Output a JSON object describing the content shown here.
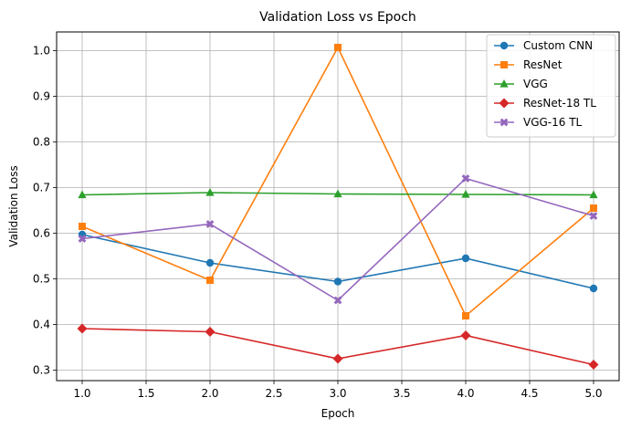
{
  "chart_data": {
    "type": "line",
    "title": "Validation Loss vs Epoch",
    "xlabel": "Epoch",
    "ylabel": "Validation Loss",
    "x": [
      1,
      2,
      3,
      4,
      5
    ],
    "xlim": [
      0.8,
      5.2
    ],
    "ylim": [
      0.277,
      1.041
    ],
    "xticks": [
      1.0,
      1.5,
      2.0,
      2.5,
      3.0,
      3.5,
      4.0,
      4.5,
      5.0
    ],
    "xtick_labels": [
      "1.0",
      "1.5",
      "2.0",
      "2.5",
      "3.0",
      "3.5",
      "4.0",
      "4.5",
      "5.0"
    ],
    "yticks": [
      0.3,
      0.4,
      0.5,
      0.6,
      0.7,
      0.8,
      0.9,
      1.0
    ],
    "ytick_labels": [
      "0.3",
      "0.4",
      "0.5",
      "0.6",
      "0.7",
      "0.8",
      "0.9",
      "1.0"
    ],
    "grid": true,
    "legend_position": "top-right",
    "series": [
      {
        "name": "Custom CNN",
        "color": "#1f77b4",
        "marker": "circle",
        "values": [
          0.597,
          0.535,
          0.494,
          0.545,
          0.479
        ]
      },
      {
        "name": "ResNet",
        "color": "#ff7f0e",
        "marker": "square",
        "values": [
          0.615,
          0.497,
          1.007,
          0.419,
          0.655
        ]
      },
      {
        "name": "VGG",
        "color": "#2ca02c",
        "marker": "triangle",
        "values": [
          0.684,
          0.689,
          0.686,
          0.685,
          0.684
        ]
      },
      {
        "name": "ResNet-18 TL",
        "color": "#d62728",
        "marker": "diamond",
        "values": [
          0.391,
          0.384,
          0.325,
          0.376,
          0.312
        ]
      },
      {
        "name": "VGG-16 TL",
        "color": "#9467bd",
        "marker": "x",
        "values": [
          0.588,
          0.62,
          0.453,
          0.72,
          0.638
        ]
      }
    ]
  }
}
